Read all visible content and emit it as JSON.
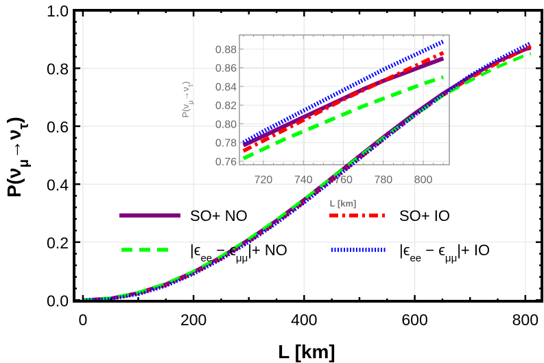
{
  "chart_data": [
    {
      "type": "line",
      "xlabel": "L [km]",
      "ylabel_parts": [
        "P(ν",
        "μ",
        "→ν",
        "τ",
        ")"
      ],
      "xlim": [
        -16,
        830
      ],
      "ylim": [
        -0.004,
        1.0
      ],
      "xticks": [
        0,
        200,
        400,
        600,
        800
      ],
      "yticks": [
        0.0,
        0.2,
        0.4,
        0.6,
        0.8,
        1.0
      ],
      "ytick_labels": [
        "0.0",
        "0.2",
        "0.4",
        "0.6",
        "0.8",
        "1.0"
      ],
      "grid": true,
      "legend_placement": "center, two columns",
      "x": [
        0,
        50,
        100,
        150,
        200,
        250,
        300,
        350,
        400,
        450,
        500,
        550,
        600,
        650,
        700,
        750,
        800,
        810
      ],
      "series": [
        {
          "name_parts": [
            "SO+ NO"
          ],
          "color": "#800080",
          "style": "solid",
          "values": [
            0,
            0.006,
            0.025,
            0.055,
            0.097,
            0.149,
            0.209,
            0.275,
            0.347,
            0.422,
            0.498,
            0.573,
            0.645,
            0.712,
            0.771,
            0.823,
            0.865,
            0.87
          ]
        },
        {
          "name_parts": [
            "SO+ IO"
          ],
          "color": "#ff0000",
          "style": "dash-dot",
          "values": [
            0,
            0.005,
            0.022,
            0.051,
            0.092,
            0.143,
            0.202,
            0.267,
            0.338,
            0.413,
            0.489,
            0.564,
            0.637,
            0.705,
            0.765,
            0.818,
            0.866,
            0.876
          ]
        },
        {
          "name_parts": [
            "|ϵ",
            "ee",
            " − ϵ",
            "μμ",
            "|+ NO"
          ],
          "color": "#00ff00",
          "style": "dashed",
          "values": [
            0,
            0.007,
            0.026,
            0.057,
            0.099,
            0.151,
            0.211,
            0.277,
            0.348,
            0.422,
            0.496,
            0.569,
            0.638,
            0.705,
            0.757,
            0.805,
            0.845,
            0.85
          ]
        },
        {
          "name_parts": [
            "|ϵ",
            "ee",
            " − ϵ",
            "μμ",
            "|+ IO"
          ],
          "color": "#0000ff",
          "style": "dotted",
          "values": [
            0,
            0.004,
            0.02,
            0.049,
            0.09,
            0.141,
            0.2,
            0.265,
            0.336,
            0.411,
            0.488,
            0.564,
            0.638,
            0.707,
            0.775,
            0.83,
            0.878,
            0.888
          ]
        }
      ]
    },
    {
      "type": "line",
      "role": "inset",
      "xlabel": "L [km]",
      "ylabel_parts": [
        "P(ν",
        "μ",
        "→ν",
        "τ",
        ")"
      ],
      "xlim": [
        708,
        813
      ],
      "ylim": [
        0.7563,
        0.895
      ],
      "xticks": [
        720,
        740,
        760,
        780,
        800
      ],
      "yticks": [
        0.76,
        0.78,
        0.8,
        0.82,
        0.84,
        0.86,
        0.88
      ],
      "ytick_labels": [
        "0.76",
        "0.78",
        "0.80",
        "0.82",
        "0.84",
        "0.86",
        "0.88"
      ],
      "grid": true,
      "x": [
        710,
        720,
        730,
        740,
        750,
        760,
        770,
        780,
        790,
        800,
        810
      ],
      "series": [
        {
          "color": "#800080",
          "style": "solid",
          "values": [
            0.777,
            0.787,
            0.797,
            0.807,
            0.817,
            0.827,
            0.837,
            0.846,
            0.854,
            0.862,
            0.87
          ]
        },
        {
          "color": "#ff0000",
          "style": "dash-dot",
          "values": [
            0.771,
            0.782,
            0.793,
            0.804,
            0.815,
            0.826,
            0.836,
            0.846,
            0.856,
            0.866,
            0.876
          ]
        },
        {
          "color": "#00ff00",
          "style": "dashed",
          "values": [
            0.763,
            0.773,
            0.783,
            0.792,
            0.801,
            0.81,
            0.819,
            0.827,
            0.835,
            0.843,
            0.85
          ]
        },
        {
          "color": "#0000ff",
          "style": "dotted",
          "values": [
            0.78,
            0.792,
            0.803,
            0.814,
            0.825,
            0.836,
            0.847,
            0.858,
            0.868,
            0.878,
            0.888
          ]
        }
      ]
    }
  ]
}
